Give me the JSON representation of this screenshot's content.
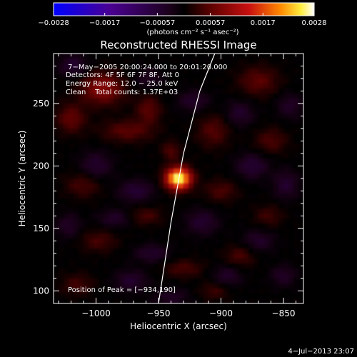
{
  "chart_data": {
    "type": "heatmap",
    "title": "Reconstructed RHESSI Image",
    "xlabel": "Heliocentric X (arcsec)",
    "ylabel": "Heliocentric Y (arcsec)",
    "xlim": [
      -1034,
      -834
    ],
    "ylim": [
      90,
      290
    ],
    "x_ticks": [
      -1000,
      -950,
      -900,
      -850
    ],
    "x_tick_labels": [
      "−1000",
      "−950",
      "−900",
      "−850"
    ],
    "y_ticks": [
      100,
      150,
      200,
      250
    ],
    "y_tick_labels": [
      "100",
      "150",
      "200",
      "250"
    ],
    "colorbar": {
      "min": -0.0028,
      "max": 0.0028,
      "tick_values": [
        -0.0028,
        -0.0017,
        -0.00057,
        0.00057,
        0.0017,
        0.0028
      ],
      "tick_labels": [
        "−0.0028",
        "−0.0017",
        "−0.00057",
        "0.00057",
        "0.0017",
        "0.0028"
      ],
      "unit_label": "(photons cm⁻² s⁻¹ asec⁻²)"
    },
    "annotations": [
      " 7−May−2005 20:00:24.000 to 20:01:20.000",
      "Detectors: 4F 5F 6F 7F 8F, Att 0",
      "Energy Range: 12.0 − 25.0 keV",
      "Clean    Total counts: 1.37E+03"
    ],
    "peak_label": "Position of Peak = [−934,190]",
    "peak": {
      "x": -934,
      "y": 190
    },
    "limb_points": [
      [
        -950,
        90
      ],
      [
        -940,
        155
      ],
      [
        -930,
        210
      ],
      [
        -917,
        260
      ],
      [
        -905,
        290
      ]
    ],
    "blobs": [
      {
        "x": -934,
        "y": 190,
        "sx": 7,
        "sy": 6,
        "a": 1.0
      },
      {
        "x": -995,
        "y": 262,
        "sx": 12,
        "sy": 9,
        "a": 0.32
      },
      {
        "x": -1020,
        "y": 238,
        "sx": 8,
        "sy": 8,
        "a": 0.22
      },
      {
        "x": -975,
        "y": 228,
        "sx": 14,
        "sy": 6,
        "a": 0.2
      },
      {
        "x": -958,
        "y": 245,
        "sx": 7,
        "sy": 8,
        "a": 0.2
      },
      {
        "x": -906,
        "y": 228,
        "sx": 9,
        "sy": 9,
        "a": 0.18
      },
      {
        "x": -870,
        "y": 268,
        "sx": 11,
        "sy": 8,
        "a": 0.2
      },
      {
        "x": -860,
        "y": 220,
        "sx": 9,
        "sy": 7,
        "a": 0.16
      },
      {
        "x": -900,
        "y": 180,
        "sx": 9,
        "sy": 6,
        "a": 0.16
      },
      {
        "x": -1010,
        "y": 185,
        "sx": 10,
        "sy": 7,
        "a": 0.16
      },
      {
        "x": -960,
        "y": 160,
        "sx": 9,
        "sy": 5,
        "a": 0.15
      },
      {
        "x": -998,
        "y": 140,
        "sx": 10,
        "sy": 6,
        "a": 0.15
      },
      {
        "x": -885,
        "y": 128,
        "sx": 8,
        "sy": 6,
        "a": 0.16
      },
      {
        "x": -930,
        "y": 118,
        "sx": 11,
        "sy": 5,
        "a": 0.15
      },
      {
        "x": -1015,
        "y": 105,
        "sx": 9,
        "sy": 6,
        "a": 0.14
      },
      {
        "x": -862,
        "y": 160,
        "sx": 8,
        "sy": 6,
        "a": 0.13
      },
      {
        "x": -905,
        "y": 100,
        "sx": 8,
        "sy": 5,
        "a": 0.13
      },
      {
        "x": -940,
        "y": 212,
        "sx": 5,
        "sy": 5,
        "a": 0.18
      },
      {
        "x": -1018,
        "y": 280,
        "sx": 8,
        "sy": 6,
        "a": -0.2
      },
      {
        "x": -1000,
        "y": 200,
        "sx": 9,
        "sy": 8,
        "a": -0.18
      },
      {
        "x": -968,
        "y": 180,
        "sx": 10,
        "sy": 6,
        "a": -0.2
      },
      {
        "x": -985,
        "y": 158,
        "sx": 9,
        "sy": 5,
        "a": -0.16
      },
      {
        "x": -1022,
        "y": 152,
        "sx": 7,
        "sy": 7,
        "a": -0.15
      },
      {
        "x": -955,
        "y": 130,
        "sx": 10,
        "sy": 5,
        "a": -0.17
      },
      {
        "x": -972,
        "y": 108,
        "sx": 9,
        "sy": 6,
        "a": -0.18
      },
      {
        "x": -922,
        "y": 252,
        "sx": 9,
        "sy": 6,
        "a": -0.16
      },
      {
        "x": -885,
        "y": 242,
        "sx": 8,
        "sy": 7,
        "a": -0.17
      },
      {
        "x": -845,
        "y": 248,
        "sx": 7,
        "sy": 7,
        "a": -0.15
      },
      {
        "x": -875,
        "y": 200,
        "sx": 9,
        "sy": 7,
        "a": -0.2
      },
      {
        "x": -848,
        "y": 185,
        "sx": 7,
        "sy": 8,
        "a": -0.18
      },
      {
        "x": -915,
        "y": 155,
        "sx": 9,
        "sy": 7,
        "a": -0.18
      },
      {
        "x": -870,
        "y": 140,
        "sx": 9,
        "sy": 6,
        "a": -0.16
      },
      {
        "x": -895,
        "y": 112,
        "sx": 8,
        "sy": 6,
        "a": -0.16
      },
      {
        "x": -850,
        "y": 112,
        "sx": 7,
        "sy": 6,
        "a": -0.15
      },
      {
        "x": -940,
        "y": 95,
        "sx": 10,
        "sy": 5,
        "a": -0.14
      },
      {
        "x": -958,
        "y": 270,
        "sx": 8,
        "sy": 6,
        "a": -0.13
      }
    ]
  },
  "footer_timestamp": "4−Jul−2013 23:07"
}
